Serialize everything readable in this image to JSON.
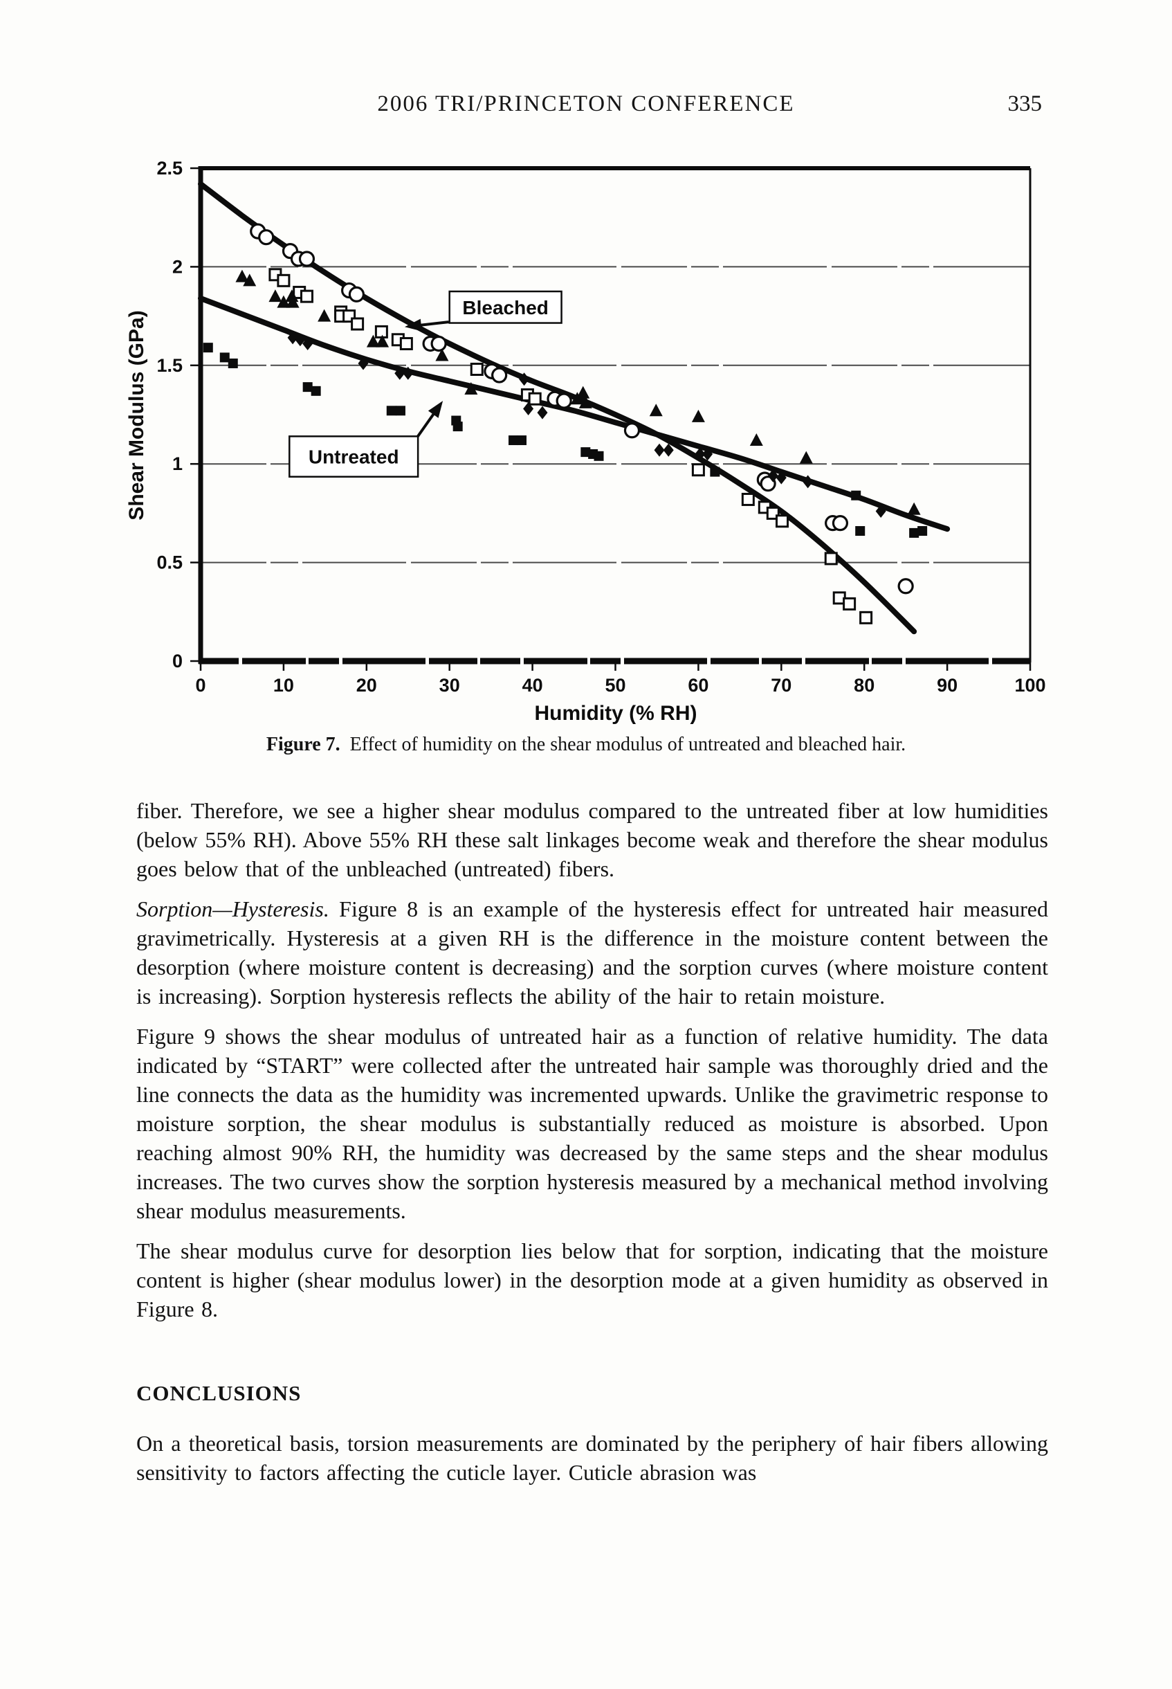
{
  "page": {
    "header": "2006 TRI/PRINCETON CONFERENCE",
    "page_number": "335"
  },
  "figure": {
    "caption_label": "Figure 7.",
    "caption_text": "Effect of humidity on the shear modulus of untreated and bleached hair."
  },
  "chart_data": {
    "type": "scatter",
    "title": "",
    "xlabel": "Humidity (% RH)",
    "ylabel": "Shear Modulus (GPa)",
    "xlim": [
      0,
      100
    ],
    "ylim": [
      0,
      2.5
    ],
    "x_ticks": [
      0,
      10,
      20,
      30,
      40,
      50,
      60,
      70,
      80,
      90,
      100
    ],
    "y_ticks": [
      0,
      0.5,
      1,
      1.5,
      2,
      2.5
    ],
    "y_tick_labels": [
      "0",
      "0.5",
      "1",
      "1.5",
      "2",
      "2.5"
    ],
    "grid": "horizontal",
    "legend_position": "none",
    "annotations": [
      {
        "label": "Bleached",
        "box_rh": [
          30.0,
          43.5
        ],
        "box_gpa": [
          1.715,
          1.875
        ],
        "arrow_from_rh": 29.9,
        "arrow_from_gpa": 1.72,
        "arrow_to_rh": 24.6,
        "arrow_to_gpa": 1.695
      },
      {
        "label": "Untreated",
        "box_rh": [
          10.7,
          26.2
        ],
        "box_gpa": [
          0.935,
          1.14
        ],
        "arrow_from_rh": 26.1,
        "arrow_from_gpa": 1.135,
        "arrow_to_rh": 29.2,
        "arrow_to_gpa": 1.32
      }
    ],
    "series": [
      {
        "name": "Bleached fit curve",
        "kind": "curve",
        "marker": "none",
        "points": [
          [
            0,
            2.42
          ],
          [
            5,
            2.26
          ],
          [
            10,
            2.11
          ],
          [
            15,
            1.97
          ],
          [
            20,
            1.84
          ],
          [
            25,
            1.72
          ],
          [
            30,
            1.61
          ],
          [
            35,
            1.51
          ],
          [
            40,
            1.42
          ],
          [
            45,
            1.34
          ],
          [
            50,
            1.25
          ],
          [
            55,
            1.15
          ],
          [
            60,
            1.03
          ],
          [
            65,
            0.9
          ],
          [
            70,
            0.76
          ],
          [
            75,
            0.59
          ],
          [
            80,
            0.4
          ],
          [
            86,
            0.15
          ]
        ]
      },
      {
        "name": "Untreated fit curve",
        "kind": "curve",
        "marker": "none",
        "points": [
          [
            0,
            1.84
          ],
          [
            5,
            1.76
          ],
          [
            10,
            1.68
          ],
          [
            15,
            1.6
          ],
          [
            20,
            1.53
          ],
          [
            25,
            1.47
          ],
          [
            30,
            1.42
          ],
          [
            35,
            1.37
          ],
          [
            40,
            1.32
          ],
          [
            45,
            1.27
          ],
          [
            50,
            1.21
          ],
          [
            55,
            1.15
          ],
          [
            60,
            1.09
          ],
          [
            65,
            1.03
          ],
          [
            70,
            0.96
          ],
          [
            75,
            0.89
          ],
          [
            80,
            0.82
          ],
          [
            85,
            0.74
          ],
          [
            90,
            0.67
          ]
        ]
      },
      {
        "name": "Bleached data (open circles)",
        "kind": "scatter",
        "marker": "circle-open",
        "points": [
          [
            6.9,
            2.18
          ],
          [
            7.9,
            2.15
          ],
          [
            10.8,
            2.08
          ],
          [
            11.8,
            2.04
          ],
          [
            12.8,
            2.04
          ],
          [
            17.9,
            1.88
          ],
          [
            18.8,
            1.86
          ],
          [
            27.7,
            1.61
          ],
          [
            28.7,
            1.61
          ],
          [
            35.1,
            1.47
          ],
          [
            36.0,
            1.45
          ],
          [
            42.7,
            1.33
          ],
          [
            43.8,
            1.32
          ],
          [
            52.0,
            1.17
          ],
          [
            68.0,
            0.92
          ],
          [
            68.4,
            0.9
          ],
          [
            76.2,
            0.7
          ],
          [
            77.1,
            0.7
          ],
          [
            85.0,
            0.38
          ]
        ]
      },
      {
        "name": "Bleached data (open squares)",
        "kind": "scatter",
        "marker": "square-open",
        "points": [
          [
            9.0,
            1.96
          ],
          [
            10.0,
            1.93
          ],
          [
            11.9,
            1.87
          ],
          [
            12.8,
            1.85
          ],
          [
            16.9,
            1.77
          ],
          [
            16.9,
            1.75
          ],
          [
            17.9,
            1.75
          ],
          [
            18.9,
            1.71
          ],
          [
            21.8,
            1.67
          ],
          [
            23.8,
            1.63
          ],
          [
            24.8,
            1.61
          ],
          [
            33.3,
            1.48
          ],
          [
            39.4,
            1.35
          ],
          [
            40.3,
            1.33
          ],
          [
            60.0,
            0.97
          ],
          [
            66.0,
            0.82
          ],
          [
            68.0,
            0.78
          ],
          [
            69.0,
            0.75
          ],
          [
            70.1,
            0.71
          ],
          [
            76.0,
            0.52
          ],
          [
            77.0,
            0.32
          ],
          [
            78.2,
            0.29
          ],
          [
            80.2,
            0.22
          ]
        ]
      },
      {
        "name": "Untreated data (filled triangles)",
        "kind": "scatter",
        "marker": "triangle-filled",
        "points": [
          [
            5.0,
            1.95
          ],
          [
            5.9,
            1.93
          ],
          [
            9.0,
            1.85
          ],
          [
            10.0,
            1.82
          ],
          [
            11.0,
            1.85
          ],
          [
            11.1,
            1.82
          ],
          [
            14.9,
            1.75
          ],
          [
            20.8,
            1.62
          ],
          [
            21.9,
            1.62
          ],
          [
            29.1,
            1.55
          ],
          [
            32.6,
            1.38
          ],
          [
            45.4,
            1.33
          ],
          [
            46.1,
            1.36
          ],
          [
            46.4,
            1.31
          ],
          [
            54.9,
            1.27
          ],
          [
            60.0,
            1.24
          ],
          [
            67.0,
            1.12
          ],
          [
            73.0,
            1.03
          ],
          [
            86.0,
            0.77
          ]
        ]
      },
      {
        "name": "Untreated data (filled squares)",
        "kind": "scatter",
        "marker": "square-filled",
        "points": [
          [
            0.9,
            1.59
          ],
          [
            2.9,
            1.54
          ],
          [
            3.9,
            1.51
          ],
          [
            12.9,
            1.39
          ],
          [
            13.9,
            1.37
          ],
          [
            23.0,
            1.27
          ],
          [
            24.1,
            1.27
          ],
          [
            30.8,
            1.22
          ],
          [
            31.0,
            1.19
          ],
          [
            37.7,
            1.12
          ],
          [
            38.7,
            1.12
          ],
          [
            46.4,
            1.06
          ],
          [
            47.3,
            1.05
          ],
          [
            48.0,
            1.04
          ],
          [
            62.0,
            0.96
          ],
          [
            79.0,
            0.84
          ],
          [
            79.5,
            0.66
          ],
          [
            86.0,
            0.65
          ],
          [
            87.0,
            0.66
          ]
        ]
      },
      {
        "name": "Untreated data (filled diamonds)",
        "kind": "scatter",
        "marker": "diamond-filled",
        "points": [
          [
            11.1,
            1.64
          ],
          [
            12.0,
            1.63
          ],
          [
            12.9,
            1.61
          ],
          [
            19.6,
            1.51
          ],
          [
            24.0,
            1.46
          ],
          [
            25.0,
            1.46
          ],
          [
            39.0,
            1.43
          ],
          [
            39.5,
            1.28
          ],
          [
            41.2,
            1.26
          ],
          [
            55.3,
            1.07
          ],
          [
            56.4,
            1.07
          ],
          [
            60.2,
            1.05
          ],
          [
            61.1,
            1.05
          ],
          [
            69.0,
            0.94
          ],
          [
            70.0,
            0.93
          ],
          [
            73.2,
            0.91
          ],
          [
            82.0,
            0.76
          ]
        ]
      }
    ]
  },
  "body": {
    "p1": "fiber. Therefore, we see a higher shear modulus compared to the untreated fiber at low humidities (below 55% RH). Above 55% RH these salt linkages become weak and therefore the shear modulus goes below that of the unbleached (untreated) fibers.",
    "p2_lead": "Sorption—Hysteresis.",
    "p2_rest": " Figure 8 is an example of the hysteresis effect for untreated hair measured gravimetrically. Hysteresis at a given RH is the difference in the moisture content between the desorption (where moisture content is decreasing) and the sorption curves (where moisture content is increasing). Sorption hysteresis reflects the ability of the hair to retain moisture.",
    "p3": "Figure 9 shows the shear modulus of untreated hair as a function of relative humidity. The data indicated by “START” were collected after the untreated hair sample was thoroughly dried and the line connects the data as the humidity was incremented upwards. Unlike the gravimetric response to moisture sorption, the shear modulus is substantially reduced as moisture is absorbed. Upon reaching almost 90% RH, the humidity was decreased by the same steps and the shear modulus increases. The two curves show the sorption hysteresis measured by a mechanical method involving shear modulus measurements.",
    "p4": "The shear modulus curve for desorption lies below that for sorption, indicating that the moisture content is higher (shear modulus lower) in the desorption mode at a given humidity as observed in Figure 8.",
    "conclusions_heading": "CONCLUSIONS",
    "p5": "On a theoretical basis, torsion measurements are dominated by the periphery of hair fibers allowing sensitivity to factors affecting the cuticle layer. Cuticle abrasion was"
  }
}
